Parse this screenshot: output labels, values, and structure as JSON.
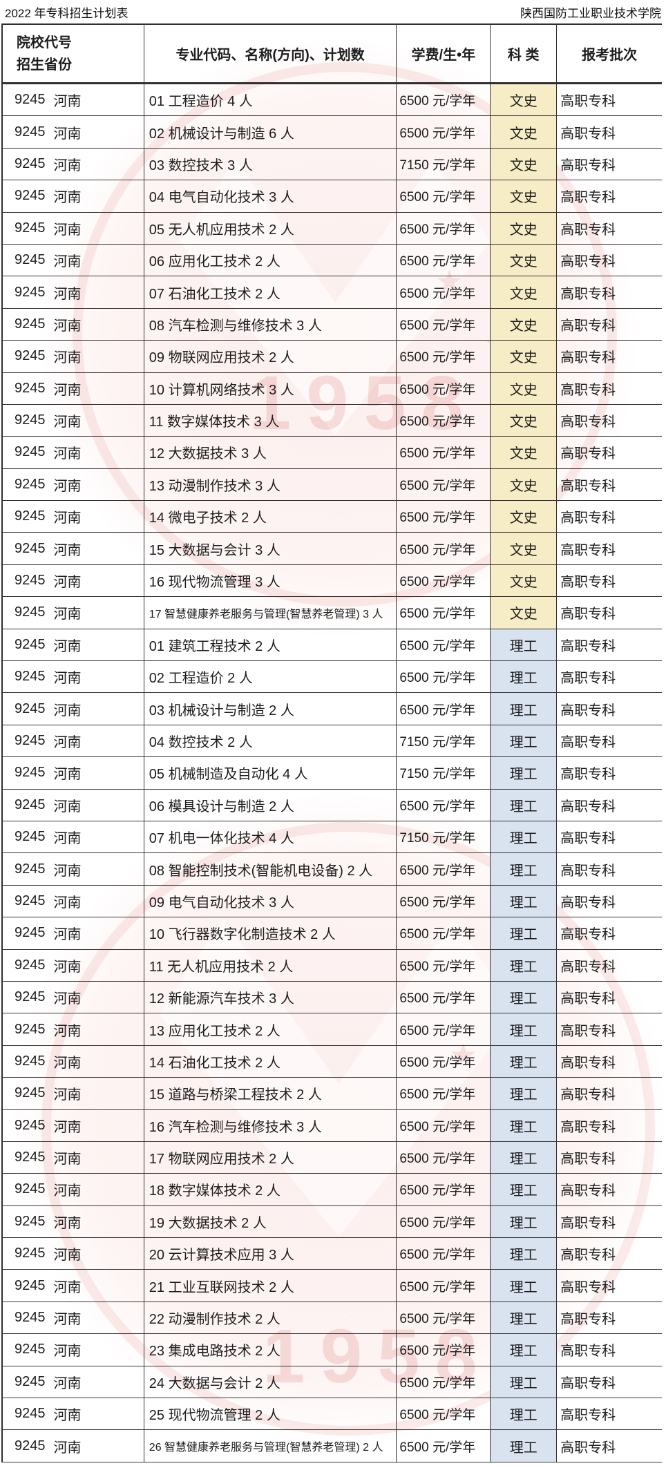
{
  "page": {
    "title_left": "2022 年专科招生计划表",
    "title_right": "陕西国防工业职业技术学院"
  },
  "watermark": {
    "text": "1958",
    "seal_color": "#cd463c"
  },
  "table": {
    "headers": {
      "col1_line1": "院校代号",
      "col1_line2": "招生省份",
      "col2": "专业代码、名称(方向)、计划数",
      "col3": "学费/生•年",
      "col4": "科 类",
      "col5": "报考批次"
    },
    "category_colors": {
      "文史": "#f6ecc6",
      "理工": "#d9e3f0"
    },
    "rows": [
      {
        "code": "9245",
        "province": "河南",
        "major": "01 工程造价 4 人",
        "tuition": "6500 元/学年",
        "category": "文史",
        "batch": "高职专科"
      },
      {
        "code": "9245",
        "province": "河南",
        "major": "02 机械设计与制造 6 人",
        "tuition": "6500 元/学年",
        "category": "文史",
        "batch": "高职专科"
      },
      {
        "code": "9245",
        "province": "河南",
        "major": "03 数控技术 3 人",
        "tuition": "7150 元/学年",
        "category": "文史",
        "batch": "高职专科"
      },
      {
        "code": "9245",
        "province": "河南",
        "major": "04 电气自动化技术 3 人",
        "tuition": "6500 元/学年",
        "category": "文史",
        "batch": "高职专科"
      },
      {
        "code": "9245",
        "province": "河南",
        "major": "05 无人机应用技术 2 人",
        "tuition": "6500 元/学年",
        "category": "文史",
        "batch": "高职专科"
      },
      {
        "code": "9245",
        "province": "河南",
        "major": "06 应用化工技术 2 人",
        "tuition": "6500 元/学年",
        "category": "文史",
        "batch": "高职专科"
      },
      {
        "code": "9245",
        "province": "河南",
        "major": "07 石油化工技术 2 人",
        "tuition": "6500 元/学年",
        "category": "文史",
        "batch": "高职专科"
      },
      {
        "code": "9245",
        "province": "河南",
        "major": "08 汽车检测与维修技术 3 人",
        "tuition": "6500 元/学年",
        "category": "文史",
        "batch": "高职专科"
      },
      {
        "code": "9245",
        "province": "河南",
        "major": "09 物联网应用技术 2 人",
        "tuition": "6500 元/学年",
        "category": "文史",
        "batch": "高职专科"
      },
      {
        "code": "9245",
        "province": "河南",
        "major": "10 计算机网络技术 3 人",
        "tuition": "6500 元/学年",
        "category": "文史",
        "batch": "高职专科"
      },
      {
        "code": "9245",
        "province": "河南",
        "major": "11 数字媒体技术 3 人",
        "tuition": "6500 元/学年",
        "category": "文史",
        "batch": "高职专科"
      },
      {
        "code": "9245",
        "province": "河南",
        "major": "12 大数据技术 3 人",
        "tuition": "6500 元/学年",
        "category": "文史",
        "batch": "高职专科"
      },
      {
        "code": "9245",
        "province": "河南",
        "major": "13 动漫制作技术 3 人",
        "tuition": "6500 元/学年",
        "category": "文史",
        "batch": "高职专科"
      },
      {
        "code": "9245",
        "province": "河南",
        "major": "14 微电子技术 2 人",
        "tuition": "6500 元/学年",
        "category": "文史",
        "batch": "高职专科"
      },
      {
        "code": "9245",
        "province": "河南",
        "major": "15 大数据与会计 3 人",
        "tuition": "6500 元/学年",
        "category": "文史",
        "batch": "高职专科"
      },
      {
        "code": "9245",
        "province": "河南",
        "major": "16 现代物流管理 3 人",
        "tuition": "6500 元/学年",
        "category": "文史",
        "batch": "高职专科"
      },
      {
        "code": "9245",
        "province": "河南",
        "major": "17 智慧健康养老服务与管理(智慧养老管理) 3 人",
        "tuition": "6500 元/学年",
        "category": "文史",
        "batch": "高职专科"
      },
      {
        "code": "9245",
        "province": "河南",
        "major": "01 建筑工程技术 2 人",
        "tuition": "6500 元/学年",
        "category": "理工",
        "batch": "高职专科"
      },
      {
        "code": "9245",
        "province": "河南",
        "major": "02 工程造价 2 人",
        "tuition": "6500 元/学年",
        "category": "理工",
        "batch": "高职专科"
      },
      {
        "code": "9245",
        "province": "河南",
        "major": "03 机械设计与制造 2 人",
        "tuition": "6500 元/学年",
        "category": "理工",
        "batch": "高职专科"
      },
      {
        "code": "9245",
        "province": "河南",
        "major": "04 数控技术 2 人",
        "tuition": "7150 元/学年",
        "category": "理工",
        "batch": "高职专科"
      },
      {
        "code": "9245",
        "province": "河南",
        "major": "05 机械制造及自动化 4 人",
        "tuition": "7150 元/学年",
        "category": "理工",
        "batch": "高职专科"
      },
      {
        "code": "9245",
        "province": "河南",
        "major": "06 模具设计与制造 2 人",
        "tuition": "6500 元/学年",
        "category": "理工",
        "batch": "高职专科"
      },
      {
        "code": "9245",
        "province": "河南",
        "major": "07 机电一体化技术 4 人",
        "tuition": "7150 元/学年",
        "category": "理工",
        "batch": "高职专科"
      },
      {
        "code": "9245",
        "province": "河南",
        "major": "08 智能控制技术(智能机电设备) 2 人",
        "tuition": "6500 元/学年",
        "category": "理工",
        "batch": "高职专科"
      },
      {
        "code": "9245",
        "province": "河南",
        "major": "09 电气自动化技术 3 人",
        "tuition": "6500 元/学年",
        "category": "理工",
        "batch": "高职专科"
      },
      {
        "code": "9245",
        "province": "河南",
        "major": "10 飞行器数字化制造技术 2 人",
        "tuition": "6500 元/学年",
        "category": "理工",
        "batch": "高职专科"
      },
      {
        "code": "9245",
        "province": "河南",
        "major": "11 无人机应用技术 2 人",
        "tuition": "6500 元/学年",
        "category": "理工",
        "batch": "高职专科"
      },
      {
        "code": "9245",
        "province": "河南",
        "major": "12 新能源汽车技术 3 人",
        "tuition": "6500 元/学年",
        "category": "理工",
        "batch": "高职专科"
      },
      {
        "code": "9245",
        "province": "河南",
        "major": "13 应用化工技术 2 人",
        "tuition": "6500 元/学年",
        "category": "理工",
        "batch": "高职专科"
      },
      {
        "code": "9245",
        "province": "河南",
        "major": "14 石油化工技术 2 人",
        "tuition": "6500 元/学年",
        "category": "理工",
        "batch": "高职专科"
      },
      {
        "code": "9245",
        "province": "河南",
        "major": "15 道路与桥梁工程技术 2 人",
        "tuition": "6500 元/学年",
        "category": "理工",
        "batch": "高职专科"
      },
      {
        "code": "9245",
        "province": "河南",
        "major": "16 汽车检测与维修技术 3 人",
        "tuition": "6500 元/学年",
        "category": "理工",
        "batch": "高职专科"
      },
      {
        "code": "9245",
        "province": "河南",
        "major": "17 物联网应用技术 2 人",
        "tuition": "6500 元/学年",
        "category": "理工",
        "batch": "高职专科"
      },
      {
        "code": "9245",
        "province": "河南",
        "major": "18 数字媒体技术 2 人",
        "tuition": "6500 元/学年",
        "category": "理工",
        "batch": "高职专科"
      },
      {
        "code": "9245",
        "province": "河南",
        "major": "19 大数据技术 2 人",
        "tuition": "6500 元/学年",
        "category": "理工",
        "batch": "高职专科"
      },
      {
        "code": "9245",
        "province": "河南",
        "major": "20 云计算技术应用 3 人",
        "tuition": "6500 元/学年",
        "category": "理工",
        "batch": "高职专科"
      },
      {
        "code": "9245",
        "province": "河南",
        "major": "21 工业互联网技术 2 人",
        "tuition": "6500 元/学年",
        "category": "理工",
        "batch": "高职专科"
      },
      {
        "code": "9245",
        "province": "河南",
        "major": "22 动漫制作技术 2 人",
        "tuition": "6500 元/学年",
        "category": "理工",
        "batch": "高职专科"
      },
      {
        "code": "9245",
        "province": "河南",
        "major": "23 集成电路技术 2 人",
        "tuition": "6500 元/学年",
        "category": "理工",
        "batch": "高职专科"
      },
      {
        "code": "9245",
        "province": "河南",
        "major": "24 大数据与会计 2 人",
        "tuition": "6500 元/学年",
        "category": "理工",
        "batch": "高职专科"
      },
      {
        "code": "9245",
        "province": "河南",
        "major": "25 现代物流管理 2 人",
        "tuition": "6500 元/学年",
        "category": "理工",
        "batch": "高职专科"
      },
      {
        "code": "9245",
        "province": "河南",
        "major": "26 智慧健康养老服务与管理(智慧养老管理) 2 人",
        "tuition": "6500 元/学年",
        "category": "理工",
        "batch": "高职专科"
      }
    ]
  }
}
